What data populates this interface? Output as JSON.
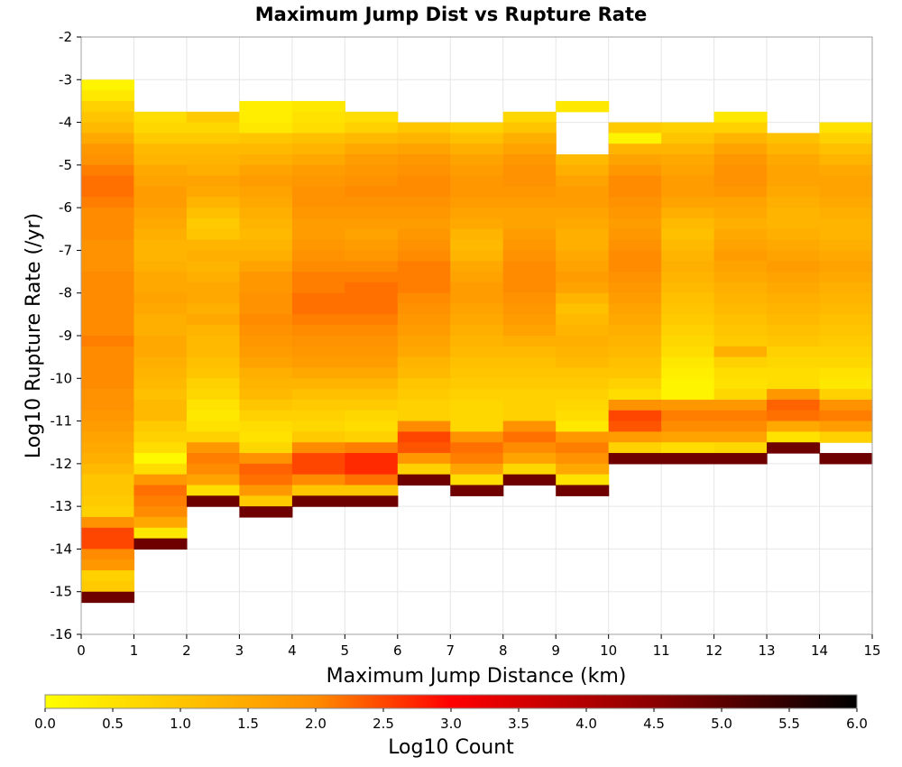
{
  "chart_data": {
    "type": "heatmap",
    "title": "Maximum Jump Dist vs Rupture Rate",
    "xlabel": "Maximum Jump Distance (km)",
    "ylabel": "Log10 Rupture Rate (/yr)",
    "xlim": [
      0,
      15
    ],
    "ylim": [
      -16,
      -2
    ],
    "x_bin_width": 1,
    "y_bin_width": 0.25,
    "grid": true,
    "x_ticks": [
      "0",
      "1",
      "2",
      "3",
      "4",
      "5",
      "6",
      "7",
      "8",
      "9",
      "10",
      "11",
      "12",
      "13",
      "14",
      "15"
    ],
    "y_ticks": [
      "-2",
      "-3",
      "-4",
      "-5",
      "-6",
      "-7",
      "-8",
      "-9",
      "-10",
      "-11",
      "-12",
      "-13",
      "-14",
      "-15",
      "-16"
    ],
    "colorbar": {
      "label": "Log10 Count",
      "range": [
        0.0,
        6.0
      ],
      "ticks": [
        "0.0",
        "0.5",
        "1.0",
        "1.5",
        "2.0",
        "2.5",
        "3.0",
        "3.5",
        "4.0",
        "4.5",
        "5.0",
        "5.5",
        "6.0"
      ],
      "stops": [
        "#ffff00",
        "#ff8c00",
        "#ff0000",
        "#8b0000",
        "#000000"
      ]
    },
    "columns": [
      {
        "x_start": 0,
        "y_top": -3.0,
        "values": [
          0.2,
          0.4,
          0.8,
          1.0,
          1.2,
          1.5,
          1.8,
          1.9,
          2.1,
          2.2,
          2.2,
          2.1,
          2.0,
          2.0,
          2.0,
          1.9,
          1.9,
          1.9,
          2.0,
          2.0,
          2.0,
          2.0,
          2.0,
          2.0,
          2.1,
          2.0,
          2.0,
          2.0,
          2.0,
          1.9,
          1.9,
          1.8,
          1.7,
          1.6,
          1.5,
          1.4,
          1.2,
          1.0,
          1.0,
          0.9,
          0.8,
          1.9,
          2.5,
          2.5,
          2.0,
          1.8,
          0.8,
          0.9,
          4.8
        ]
      },
      {
        "x_start": 1,
        "y_top": -3.75,
        "values": [
          0.6,
          0.7,
          0.9,
          1.2,
          1.3,
          1.5,
          1.6,
          1.7,
          1.7,
          1.6,
          1.5,
          1.4,
          1.3,
          1.3,
          1.4,
          1.5,
          1.5,
          1.6,
          1.5,
          1.4,
          1.4,
          1.5,
          1.5,
          1.4,
          1.3,
          1.2,
          1.1,
          1.2,
          1.2,
          0.9,
          0.8,
          0.6,
          0.1,
          0.6,
          1.8,
          2.2,
          2.1,
          2.0,
          1.5,
          0.4,
          4.8
        ]
      },
      {
        "x_start": 2,
        "y_top": -3.75,
        "values": [
          0.9,
          0.7,
          0.9,
          1.2,
          1.3,
          1.4,
          1.6,
          1.5,
          1.3,
          1.1,
          0.9,
          1.0,
          1.3,
          1.4,
          1.3,
          1.4,
          1.5,
          1.5,
          1.4,
          1.5,
          1.3,
          1.2,
          1.2,
          1.1,
          1.0,
          0.8,
          0.7,
          0.5,
          0.4,
          0.5,
          0.8,
          1.8,
          2.1,
          2.0,
          1.6,
          0.6,
          4.8
        ]
      },
      {
        "x_start": 3,
        "y_top": -3.5,
        "values": [
          0.3,
          0.3,
          0.4,
          1.0,
          1.2,
          1.4,
          1.6,
          1.7,
          1.6,
          1.5,
          1.4,
          1.3,
          1.2,
          1.3,
          1.4,
          1.6,
          1.8,
          1.8,
          1.9,
          1.9,
          2.0,
          1.9,
          1.8,
          1.7,
          1.6,
          1.4,
          1.3,
          1.2,
          1.0,
          0.8,
          0.6,
          0.5,
          0.7,
          1.9,
          2.3,
          2.2,
          1.8,
          0.9,
          4.8
        ]
      },
      {
        "x_start": 4,
        "y_top": -3.5,
        "values": [
          0.4,
          0.5,
          0.6,
          1.1,
          1.3,
          1.5,
          1.7,
          1.8,
          1.9,
          1.9,
          1.8,
          1.7,
          1.7,
          1.8,
          1.9,
          2.0,
          2.1,
          2.1,
          2.2,
          2.2,
          2.1,
          2.0,
          1.9,
          1.8,
          1.7,
          1.5,
          1.3,
          1.1,
          0.9,
          0.8,
          0.7,
          0.9,
          2.0,
          2.5,
          2.5,
          2.0,
          1.0,
          4.8
        ]
      },
      {
        "x_start": 5,
        "y_top": -3.75,
        "values": [
          0.6,
          0.8,
          1.2,
          1.5,
          1.7,
          1.8,
          1.9,
          2.0,
          1.9,
          1.8,
          1.7,
          1.6,
          1.7,
          1.8,
          2.0,
          2.1,
          2.2,
          2.2,
          2.2,
          2.1,
          2.0,
          1.9,
          1.8,
          1.7,
          1.5,
          1.3,
          1.1,
          0.9,
          0.7,
          0.6,
          0.8,
          2.1,
          2.7,
          2.7,
          2.2,
          1.0,
          4.8
        ]
      },
      {
        "x_start": 6,
        "y_top": -4.0,
        "values": [
          1.0,
          1.3,
          1.6,
          1.8,
          1.9,
          2.0,
          2.0,
          1.9,
          1.8,
          1.7,
          1.8,
          1.9,
          2.0,
          2.1,
          2.1,
          2.1,
          2.0,
          1.9,
          1.8,
          1.7,
          1.6,
          1.5,
          1.3,
          1.2,
          1.0,
          0.9,
          0.8,
          0.8,
          2.0,
          2.5,
          2.4,
          1.8,
          0.8,
          4.8
        ]
      },
      {
        "x_start": 7,
        "y_top": -4.0,
        "values": [
          0.8,
          1.1,
          1.4,
          1.6,
          1.7,
          1.8,
          1.8,
          1.7,
          1.6,
          1.5,
          1.3,
          1.2,
          1.3,
          1.5,
          1.6,
          1.7,
          1.7,
          1.6,
          1.5,
          1.4,
          1.3,
          1.2,
          1.1,
          1.0,
          0.9,
          0.8,
          0.7,
          0.7,
          0.7,
          1.9,
          2.2,
          2.1,
          1.6,
          0.6,
          4.8
        ]
      },
      {
        "x_start": 8,
        "y_top": -3.75,
        "values": [
          0.7,
          1.0,
          1.4,
          1.6,
          1.8,
          1.9,
          1.9,
          1.8,
          1.7,
          1.6,
          1.6,
          1.7,
          1.8,
          1.9,
          2.0,
          2.0,
          2.0,
          1.9,
          1.8,
          1.7,
          1.6,
          1.4,
          1.2,
          1.1,
          1.0,
          0.9,
          0.8,
          0.8,
          0.8,
          1.9,
          2.2,
          2.0,
          1.6,
          0.7,
          4.8
        ]
      },
      {
        "x_start": 9,
        "y_top": -3.5,
        "values": [
          0.4,
          null,
          null,
          null,
          null,
          1.2,
          1.4,
          1.6,
          1.7,
          1.7,
          1.6,
          1.5,
          1.4,
          1.4,
          1.5,
          1.6,
          1.7,
          1.6,
          1.3,
          1.1,
          1.2,
          1.3,
          1.4,
          1.3,
          1.2,
          1.0,
          0.9,
          0.8,
          0.7,
          0.6,
          0.4,
          1.8,
          2.1,
          1.9,
          1.5,
          0.5,
          4.8
        ]
      },
      {
        "x_start": 10,
        "y_top": -4.0,
        "values": [
          0.9,
          0.2,
          1.3,
          1.6,
          1.8,
          2.0,
          2.0,
          1.9,
          1.8,
          1.7,
          1.8,
          1.9,
          2.0,
          2.0,
          1.9,
          1.8,
          1.7,
          1.6,
          1.5,
          1.4,
          1.3,
          1.2,
          1.1,
          1.0,
          0.8,
          0.6,
          1.9,
          2.5,
          2.4,
          1.7,
          0.8,
          4.8
        ]
      },
      {
        "x_start": 11,
        "y_top": -4.0,
        "values": [
          0.8,
          1.0,
          1.3,
          1.5,
          1.6,
          1.7,
          1.7,
          1.6,
          1.4,
          1.2,
          1.1,
          1.2,
          1.3,
          1.4,
          1.3,
          1.2,
          1.1,
          1.0,
          0.9,
          0.8,
          0.7,
          0.6,
          0.4,
          0.3,
          0.2,
          0.2,
          1.8,
          2.1,
          2.0,
          1.6,
          0.6,
          4.8
        ]
      },
      {
        "x_start": 12,
        "y_top": -3.75,
        "values": [
          0.4,
          0.8,
          1.3,
          1.6,
          1.8,
          1.9,
          1.9,
          1.8,
          1.6,
          1.5,
          1.4,
          1.5,
          1.6,
          1.7,
          1.6,
          1.5,
          1.4,
          1.3,
          1.2,
          1.1,
          1.0,
          0.9,
          1.4,
          0.8,
          0.6,
          0.5,
          0.7,
          1.8,
          2.1,
          2.0,
          1.6,
          0.7,
          4.8
        ]
      },
      {
        "x_start": 13,
        "y_top": -4.25,
        "values": [
          1.1,
          1.3,
          1.5,
          1.6,
          1.6,
          1.5,
          1.4,
          1.3,
          1.3,
          1.4,
          1.5,
          1.6,
          1.7,
          1.6,
          1.5,
          1.4,
          1.3,
          1.2,
          1.1,
          1.0,
          0.8,
          0.7,
          0.6,
          0.6,
          1.8,
          2.3,
          2.2,
          1.5,
          0.5,
          4.8
        ]
      },
      {
        "x_start": 14,
        "y_top": -4.0,
        "values": [
          0.5,
          0.8,
          1.1,
          1.3,
          1.5,
          1.6,
          1.6,
          1.5,
          1.4,
          1.3,
          1.3,
          1.4,
          1.5,
          1.6,
          1.5,
          1.4,
          1.3,
          1.2,
          1.1,
          1.0,
          0.9,
          0.8,
          0.7,
          0.5,
          0.4,
          0.8,
          1.9,
          2.1,
          1.7,
          0.8,
          null,
          4.8
        ]
      }
    ]
  }
}
